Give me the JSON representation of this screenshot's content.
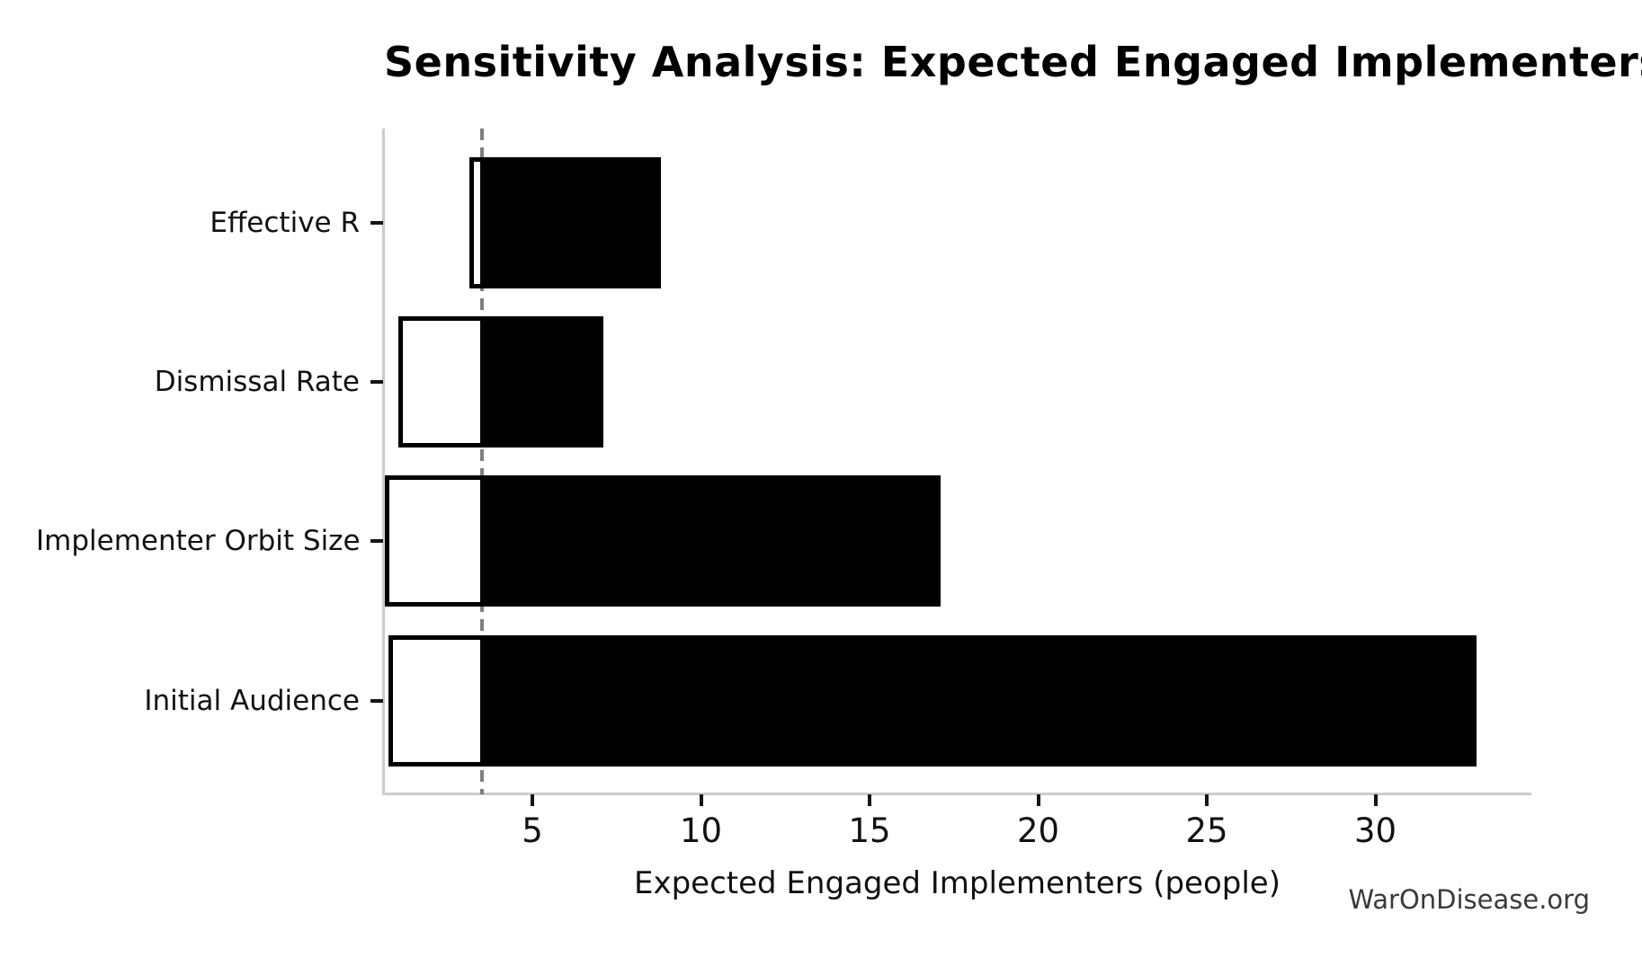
{
  "title": "Sensitivity Analysis: Expected Engaged Implementers",
  "watermark": "WarOnDisease.org",
  "colors": {
    "high_bar_fill": "#000000",
    "low_bar_fill": "#ffffff",
    "low_bar_edge": "#000000",
    "spine": "#cccccc",
    "baseline_dash": "#7f7f7f",
    "tick_mark": "#141414",
    "text": "#111111",
    "watermark_text": "#3a3a3a",
    "background": "#ffffff"
  },
  "chart_data": {
    "type": "bar",
    "subtype": "tornado-sensitivity",
    "orientation": "horizontal",
    "title": "Sensitivity Analysis: Expected Engaged Implementers",
    "xlabel": "Expected Engaged Implementers (people)",
    "ylabel": "",
    "baseline": 3.5,
    "baseline_marker": "vertical-dashed-gray-line",
    "rows_top_to_bottom": [
      {
        "label": "Effective R",
        "low": 3.2,
        "high": 8.8
      },
      {
        "label": "Dismissal Rate",
        "low": 1.1,
        "high": 7.1
      },
      {
        "label": "Implementer Orbit Size",
        "low": 0.7,
        "high": 17.1
      },
      {
        "label": "Initial Audience",
        "low": 0.8,
        "high": 33.0
      }
    ],
    "series": [
      {
        "name": "low estimate",
        "style": "white fill, black outline",
        "values": [
          3.2,
          1.1,
          0.7,
          0.8
        ]
      },
      {
        "name": "high estimate",
        "style": "solid black fill",
        "values": [
          8.8,
          7.1,
          17.1,
          33.0
        ]
      }
    ],
    "x_ticks": [
      5,
      10,
      15,
      20,
      25,
      30
    ],
    "xlim": [
      0.6,
      34.6
    ],
    "grid": false,
    "legend": false
  }
}
